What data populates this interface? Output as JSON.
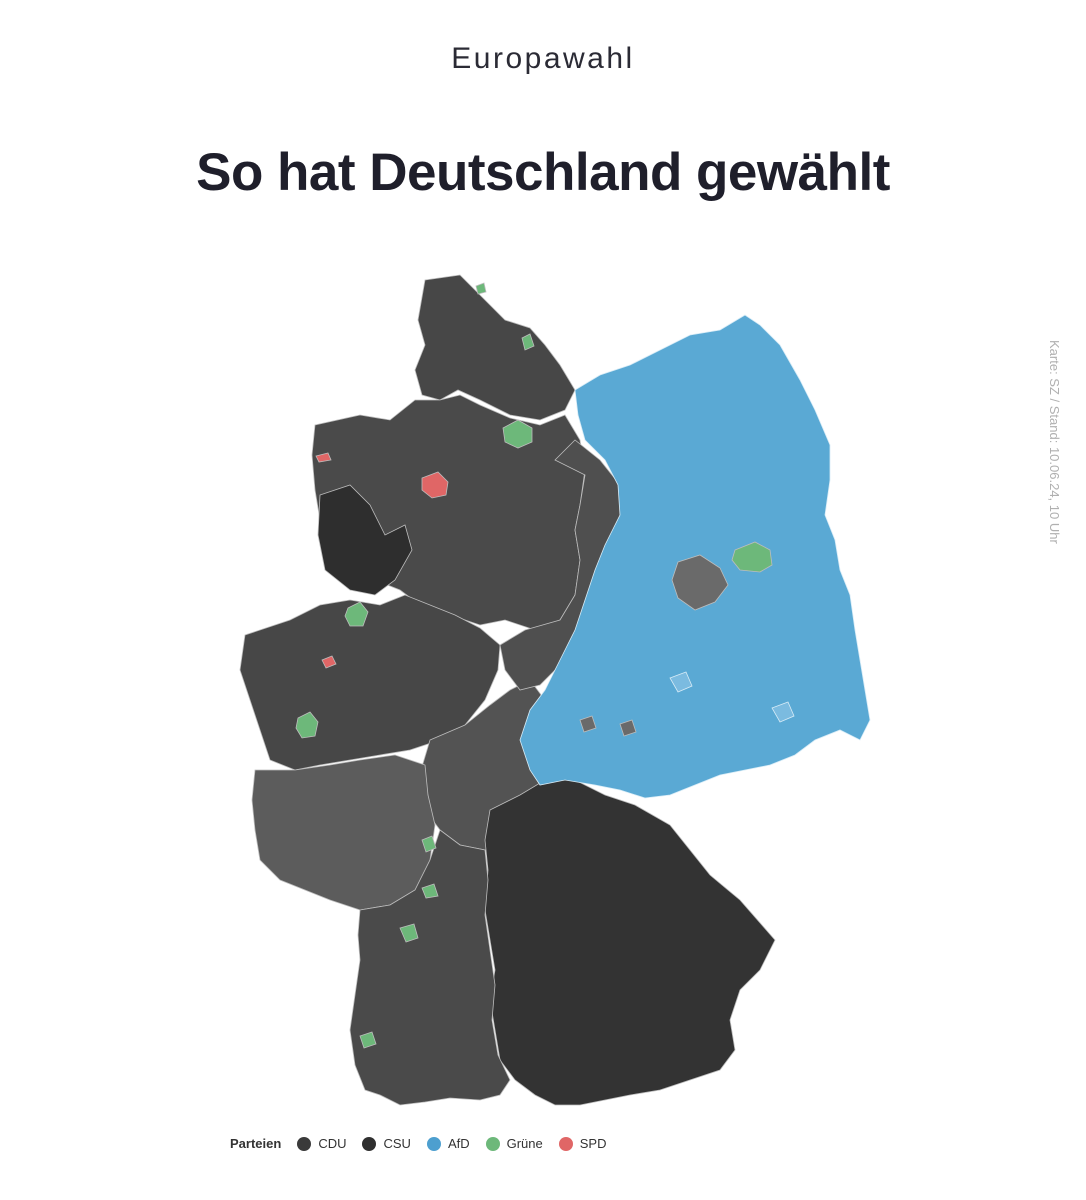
{
  "header": {
    "kicker": "Europawahl",
    "title": "So hat Deutschland gewählt"
  },
  "source": "Karte: SZ / Stand: 10.06.24, 10 Uhr",
  "legend": {
    "title": "Parteien",
    "items": [
      {
        "label": "CDU",
        "color": "#3a3a3a"
      },
      {
        "label": "CSU",
        "color": "#2f2f2f"
      },
      {
        "label": "AfD",
        "color": "#4d9fcf"
      },
      {
        "label": "Grüne",
        "color": "#6db87a"
      },
      {
        "label": "SPD",
        "color": "#e06666"
      }
    ]
  },
  "map": {
    "colors": {
      "cdu_strong": "#2e2e2e",
      "cdu": "#474747",
      "cdu_light": "#5c5c5c",
      "csu": "#333333",
      "afd": "#5aa9d4",
      "afd_light": "#7bbbe0",
      "gruene": "#6db87a",
      "spd": "#e06666",
      "border": "#bdbdbd"
    }
  }
}
